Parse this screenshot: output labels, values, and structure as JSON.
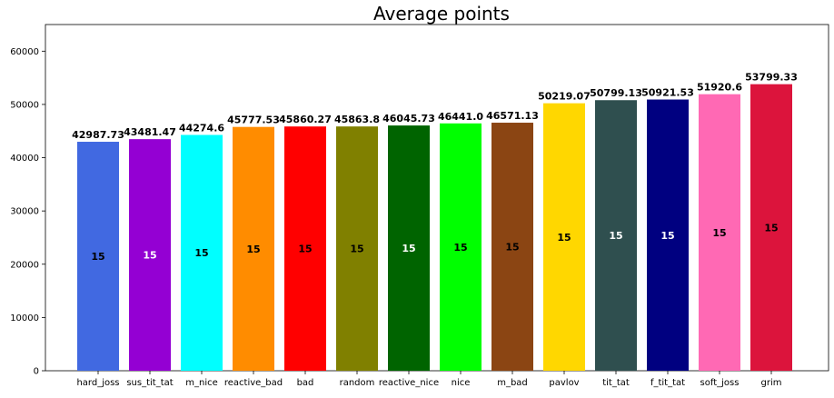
{
  "chart_data": {
    "type": "bar",
    "title": "Average points",
    "xlabel": "",
    "ylabel": "",
    "ylim": [
      0,
      65000
    ],
    "yticks": [
      0,
      10000,
      20000,
      30000,
      40000,
      50000,
      60000
    ],
    "grid": false,
    "categories": [
      "hard_joss",
      "sus_tit_tat",
      "m_nice",
      "reactive_bad",
      "bad",
      "random",
      "reactive_nice",
      "nice",
      "m_bad",
      "pavlov",
      "tit_tat",
      "f_tit_tat",
      "soft_joss",
      "grim"
    ],
    "values": [
      42987.73,
      43481.47,
      44274.6,
      45777.53,
      45860.27,
      45863.8,
      46045.73,
      46441.0,
      46571.13,
      50219.07,
      50799.13,
      50921.53,
      51920.6,
      53799.33
    ],
    "value_labels": [
      "42987.73",
      "43481.47",
      "44274.6",
      "45777.53",
      "45860.27",
      "45863.8",
      "46045.73",
      "46441.0",
      "46571.13",
      "50219.07",
      "50799.13",
      "50921.53",
      "51920.6",
      "53799.33"
    ],
    "inner_labels": [
      "15",
      "15",
      "15",
      "15",
      "15",
      "15",
      "15",
      "15",
      "15",
      "15",
      "15",
      "15",
      "15",
      "15"
    ],
    "colors": [
      "#4169e1",
      "#9400d3",
      "#00ffff",
      "#ff8c00",
      "#ff0000",
      "#808000",
      "#006400",
      "#00ff00",
      "#8b4513",
      "#ffd700",
      "#2f4f4f",
      "#000080",
      "#ff69b4",
      "#dc143c"
    ],
    "inner_label_colors": [
      "#000000",
      "#ffffff",
      "#000000",
      "#000000",
      "#000000",
      "#000000",
      "#ffffff",
      "#000000",
      "#000000",
      "#000000",
      "#ffffff",
      "#ffffff",
      "#000000",
      "#000000"
    ]
  }
}
